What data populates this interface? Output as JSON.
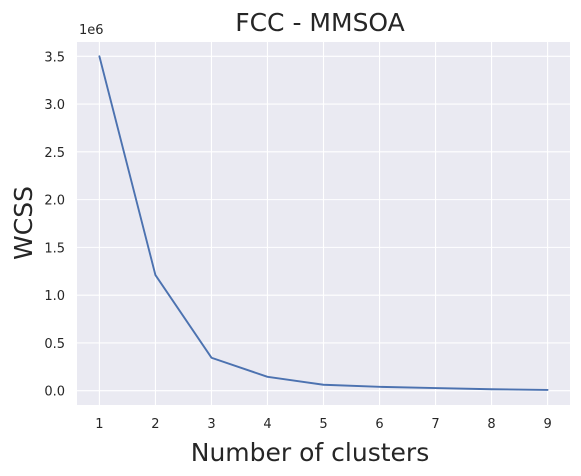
{
  "chart_data": {
    "type": "line",
    "title": "FCC - MMSOA",
    "xlabel": "Number of clusters",
    "ylabel": "WCSS",
    "y_offset_label": "1e6",
    "x": [
      1,
      2,
      3,
      4,
      5,
      6,
      7,
      8,
      9
    ],
    "series": [
      {
        "values": [
          3500000,
          1210000,
          345000,
          145000,
          62000,
          40000,
          27000,
          15000,
          8000
        ]
      }
    ],
    "xlim": [
      0.6,
      9.4
    ],
    "ylim": [
      -150000,
      3650000
    ],
    "x_ticks": [
      1,
      2,
      3,
      4,
      5,
      6,
      7,
      8,
      9
    ],
    "x_tick_labels": [
      "1",
      "2",
      "3",
      "4",
      "5",
      "6",
      "7",
      "8",
      "9"
    ],
    "y_ticks": [
      0,
      500000,
      1000000,
      1500000,
      2000000,
      2500000,
      3000000,
      3500000
    ],
    "y_tick_labels": [
      "0.0",
      "0.5",
      "1.0",
      "1.5",
      "2.0",
      "2.5",
      "3.0",
      "3.5"
    ],
    "grid": true,
    "colors": {
      "plot_background": "#eaeaf2",
      "grid": "#ffffff",
      "line": "#4c72b0",
      "text": "#262626"
    }
  }
}
